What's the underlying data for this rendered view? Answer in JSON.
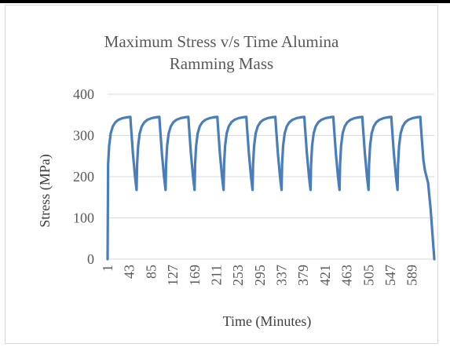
{
  "chart_data": {
    "type": "line",
    "title": "Maximum Stress v/s Time Alumina\nRamming Mass",
    "xlabel": "Time (Minutes)",
    "ylabel": "Stress (MPa)",
    "ylim": [
      0,
      400
    ],
    "yticks": [
      0,
      100,
      200,
      300,
      400
    ],
    "xlim": [
      1,
      632
    ],
    "xticks": [
      1,
      43,
      85,
      127,
      169,
      211,
      253,
      295,
      337,
      379,
      421,
      463,
      505,
      547,
      589
    ],
    "grid": "horizontal",
    "legend": "none",
    "series": [
      {
        "color": "#4a7ebb",
        "cycle_max": 345,
        "cycle_min": 168,
        "points": [
          [
            1,
            0
          ],
          [
            2,
            230
          ],
          [
            4,
            275
          ],
          [
            7,
            305
          ],
          [
            11,
            322
          ],
          [
            16,
            332
          ],
          [
            22,
            338
          ],
          [
            30,
            342
          ],
          [
            38,
            344
          ],
          [
            45,
            345
          ],
          [
            46,
            325
          ],
          [
            48,
            290
          ],
          [
            50,
            255
          ],
          [
            52,
            228
          ],
          [
            54,
            200
          ],
          [
            56,
            178
          ],
          [
            57,
            168
          ],
          [
            58,
            230
          ],
          [
            60,
            275
          ],
          [
            63,
            305
          ],
          [
            67,
            322
          ],
          [
            72,
            332
          ],
          [
            78,
            338
          ],
          [
            86,
            342
          ],
          [
            94,
            344
          ],
          [
            101,
            345
          ],
          [
            102,
            325
          ],
          [
            104,
            290
          ],
          [
            106,
            255
          ],
          [
            108,
            228
          ],
          [
            110,
            200
          ],
          [
            112,
            178
          ],
          [
            113,
            168
          ],
          [
            114,
            230
          ],
          [
            116,
            275
          ],
          [
            119,
            305
          ],
          [
            123,
            322
          ],
          [
            128,
            332
          ],
          [
            134,
            338
          ],
          [
            142,
            342
          ],
          [
            150,
            344
          ],
          [
            157,
            345
          ],
          [
            158,
            325
          ],
          [
            160,
            290
          ],
          [
            162,
            255
          ],
          [
            164,
            228
          ],
          [
            166,
            200
          ],
          [
            168,
            178
          ],
          [
            169,
            168
          ],
          [
            170,
            230
          ],
          [
            172,
            275
          ],
          [
            175,
            305
          ],
          [
            179,
            322
          ],
          [
            184,
            332
          ],
          [
            190,
            338
          ],
          [
            198,
            342
          ],
          [
            206,
            344
          ],
          [
            213,
            345
          ],
          [
            214,
            325
          ],
          [
            216,
            290
          ],
          [
            218,
            255
          ],
          [
            220,
            228
          ],
          [
            222,
            200
          ],
          [
            224,
            178
          ],
          [
            225,
            168
          ],
          [
            226,
            230
          ],
          [
            228,
            275
          ],
          [
            231,
            305
          ],
          [
            235,
            322
          ],
          [
            240,
            332
          ],
          [
            246,
            338
          ],
          [
            254,
            342
          ],
          [
            262,
            344
          ],
          [
            269,
            345
          ],
          [
            270,
            325
          ],
          [
            272,
            290
          ],
          [
            274,
            255
          ],
          [
            276,
            228
          ],
          [
            278,
            200
          ],
          [
            280,
            178
          ],
          [
            281,
            168
          ],
          [
            282,
            230
          ],
          [
            284,
            275
          ],
          [
            287,
            305
          ],
          [
            291,
            322
          ],
          [
            296,
            332
          ],
          [
            302,
            338
          ],
          [
            310,
            342
          ],
          [
            318,
            344
          ],
          [
            325,
            345
          ],
          [
            326,
            325
          ],
          [
            328,
            290
          ],
          [
            330,
            255
          ],
          [
            332,
            228
          ],
          [
            334,
            200
          ],
          [
            336,
            178
          ],
          [
            337,
            168
          ],
          [
            338,
            230
          ],
          [
            340,
            275
          ],
          [
            343,
            305
          ],
          [
            347,
            322
          ],
          [
            352,
            332
          ],
          [
            358,
            338
          ],
          [
            366,
            342
          ],
          [
            374,
            344
          ],
          [
            381,
            345
          ],
          [
            382,
            325
          ],
          [
            384,
            290
          ],
          [
            386,
            255
          ],
          [
            388,
            228
          ],
          [
            390,
            200
          ],
          [
            392,
            178
          ],
          [
            393,
            168
          ],
          [
            394,
            230
          ],
          [
            396,
            275
          ],
          [
            399,
            305
          ],
          [
            403,
            322
          ],
          [
            408,
            332
          ],
          [
            414,
            338
          ],
          [
            422,
            342
          ],
          [
            430,
            344
          ],
          [
            437,
            345
          ],
          [
            438,
            325
          ],
          [
            440,
            290
          ],
          [
            442,
            255
          ],
          [
            444,
            228
          ],
          [
            446,
            200
          ],
          [
            448,
            178
          ],
          [
            449,
            168
          ],
          [
            450,
            230
          ],
          [
            452,
            275
          ],
          [
            455,
            305
          ],
          [
            459,
            322
          ],
          [
            464,
            332
          ],
          [
            470,
            338
          ],
          [
            478,
            342
          ],
          [
            486,
            344
          ],
          [
            493,
            345
          ],
          [
            494,
            325
          ],
          [
            496,
            290
          ],
          [
            498,
            255
          ],
          [
            500,
            228
          ],
          [
            502,
            200
          ],
          [
            504,
            178
          ],
          [
            505,
            168
          ],
          [
            506,
            230
          ],
          [
            508,
            275
          ],
          [
            511,
            305
          ],
          [
            515,
            322
          ],
          [
            520,
            332
          ],
          [
            526,
            338
          ],
          [
            534,
            342
          ],
          [
            542,
            344
          ],
          [
            549,
            345
          ],
          [
            550,
            325
          ],
          [
            552,
            290
          ],
          [
            554,
            255
          ],
          [
            556,
            228
          ],
          [
            558,
            200
          ],
          [
            560,
            178
          ],
          [
            561,
            168
          ],
          [
            562,
            230
          ],
          [
            564,
            275
          ],
          [
            567,
            305
          ],
          [
            571,
            322
          ],
          [
            576,
            332
          ],
          [
            582,
            338
          ],
          [
            590,
            342
          ],
          [
            598,
            344
          ],
          [
            605,
            345
          ],
          [
            606,
            325
          ],
          [
            608,
            290
          ],
          [
            611,
            240
          ],
          [
            614,
            215
          ],
          [
            620,
            185
          ],
          [
            625,
            120
          ],
          [
            632,
            0
          ]
        ]
      }
    ]
  }
}
